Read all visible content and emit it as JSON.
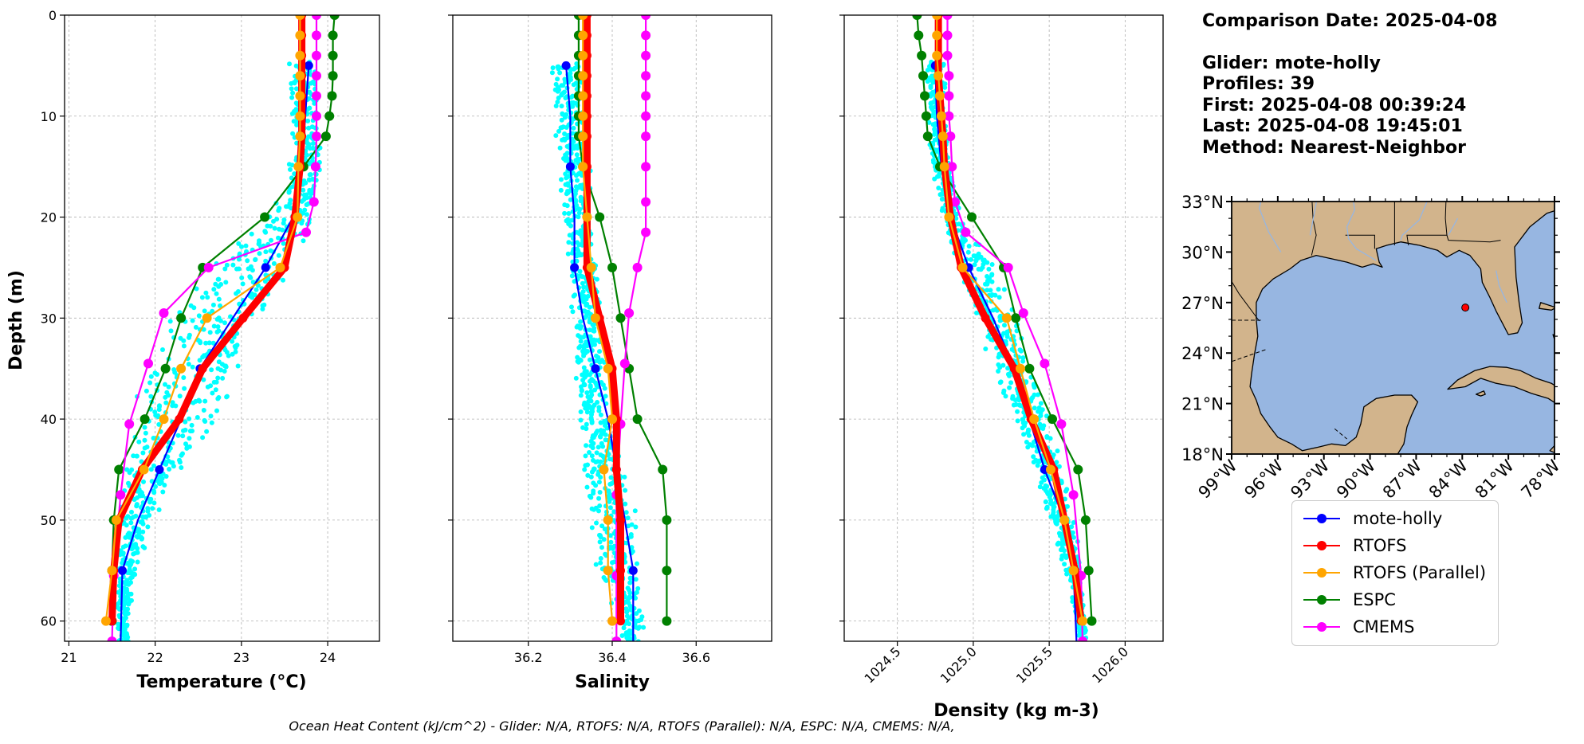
{
  "info": {
    "comparison_date": "Comparison Date: 2025-04-08",
    "glider": "Glider: mote-holly",
    "profiles": "Profiles: 39",
    "first": "First: 2025-04-08 00:39:24",
    "last": "Last: 2025-04-08 19:45:01",
    "method": "Method: Nearest-Neighbor"
  },
  "footer_text": "Ocean Heat Content (kJ/cm^2) - Glider: N/A,  RTOFS: N/A,  RTOFS (Parallel): N/A,  ESPC: N/A,  CMEMS: N/A,",
  "legend": [
    {
      "label": "mote-holly",
      "color": "#0000ff"
    },
    {
      "label": "RTOFS",
      "color": "#ff0000"
    },
    {
      "label": "RTOFS (Parallel)",
      "color": "#ffa500"
    },
    {
      "label": "ESPC",
      "color": "#008000"
    },
    {
      "label": "CMEMS",
      "color": "#ff00ff"
    }
  ],
  "chart_data": [
    {
      "type": "line",
      "xlabel": "Temperature (°C)",
      "ylabel": "Depth (m)",
      "xlim": [
        20.95,
        24.6
      ],
      "ylim": [
        62,
        0
      ],
      "yaxis_inverted": true,
      "xticks": [
        21,
        22,
        23,
        24
      ],
      "yticks": [
        0,
        10,
        20,
        30,
        40,
        50,
        60
      ],
      "grid": true,
      "glider_scatter_color": "#00ffff",
      "glider_scatter_envelope": {
        "depth": [
          5,
          10,
          15,
          20,
          25,
          30,
          35,
          40,
          45,
          50,
          55,
          60
        ],
        "min": [
          23.55,
          23.55,
          23.55,
          23.3,
          22.6,
          22.15,
          21.85,
          21.7,
          21.6,
          21.55,
          21.55,
          21.55
        ],
        "max": [
          23.9,
          23.9,
          23.95,
          23.9,
          23.6,
          23.3,
          23.05,
          22.8,
          22.3,
          22.0,
          21.8,
          21.7
        ]
      },
      "series": [
        {
          "name": "mote-holly",
          "color": "#0000ff",
          "marker_depths": [
            5,
            15,
            25,
            35,
            45,
            55
          ],
          "depth": [
            5,
            10,
            15,
            20,
            25,
            30,
            35,
            40,
            45,
            50,
            55,
            62
          ],
          "values": [
            23.78,
            23.74,
            23.7,
            23.6,
            23.28,
            22.9,
            22.52,
            22.3,
            22.05,
            21.8,
            21.62,
            21.6
          ]
        },
        {
          "name": "RTOFS",
          "color": "#ff0000",
          "marker_depths": [
            0,
            2,
            4,
            6,
            8,
            10,
            12,
            15,
            20,
            25,
            30,
            35,
            40,
            45,
            50,
            55,
            60
          ],
          "depth": [
            0,
            2,
            4,
            6,
            8,
            10,
            12,
            15,
            20,
            25,
            30,
            35,
            40,
            45,
            50,
            55,
            60
          ],
          "values": [
            23.7,
            23.7,
            23.7,
            23.7,
            23.7,
            23.7,
            23.7,
            23.68,
            23.62,
            23.5,
            23.02,
            22.55,
            22.28,
            21.85,
            21.58,
            21.52,
            21.5
          ]
        },
        {
          "name": "RTOFS (Parallel)",
          "color": "#ffa500",
          "marker_depths": [
            0,
            2,
            4,
            6,
            8,
            10,
            12,
            15,
            20,
            25,
            30,
            35,
            40,
            45,
            50,
            55,
            60
          ],
          "depth": [
            0,
            2,
            4,
            6,
            8,
            10,
            12,
            15,
            20,
            25,
            30,
            35,
            40,
            45,
            50,
            55,
            60
          ],
          "values": [
            23.68,
            23.68,
            23.68,
            23.68,
            23.68,
            23.68,
            23.68,
            23.66,
            23.65,
            23.45,
            22.6,
            22.3,
            22.1,
            21.87,
            21.55,
            21.5,
            21.43
          ]
        },
        {
          "name": "ESPC",
          "color": "#008000",
          "marker_depths": [
            0,
            2,
            4,
            6,
            8,
            10,
            12,
            15,
            20,
            25,
            30,
            35,
            40,
            45,
            50,
            55,
            60
          ],
          "depth": [
            0,
            2,
            4,
            6,
            8,
            10,
            12,
            15,
            20,
            25,
            30,
            35,
            40,
            45,
            50,
            55,
            60
          ],
          "values": [
            24.08,
            24.06,
            24.06,
            24.06,
            24.05,
            24.02,
            23.98,
            23.72,
            23.27,
            22.55,
            22.3,
            22.12,
            21.88,
            21.58,
            21.52,
            21.5,
            21.5
          ]
        },
        {
          "name": "CMEMS",
          "color": "#ff00ff",
          "marker_depths": [
            0,
            2,
            4,
            6,
            8,
            10,
            12,
            15,
            18.5,
            21.5,
            25,
            29.5,
            34.5,
            40.5,
            47.5,
            55.5,
            62
          ],
          "depth": [
            0,
            2,
            4,
            6,
            8,
            10,
            12,
            15,
            18.5,
            21.5,
            25,
            29.5,
            34.5,
            40.5,
            47.5,
            55.5,
            62
          ],
          "values": [
            23.87,
            23.87,
            23.87,
            23.87,
            23.87,
            23.87,
            23.87,
            23.86,
            23.84,
            23.75,
            22.62,
            22.1,
            21.92,
            21.7,
            21.6,
            21.52,
            21.5
          ]
        }
      ]
    },
    {
      "type": "line",
      "xlabel": "Salinity",
      "ylabel": "",
      "xlim": [
        36.02,
        36.78
      ],
      "ylim": [
        62,
        0
      ],
      "yaxis_inverted": true,
      "xticks": [
        36.2,
        36.4,
        36.6
      ],
      "yticks": [
        0,
        10,
        20,
        30,
        40,
        50,
        60
      ],
      "grid": true,
      "glider_scatter_color": "#00ffff",
      "glider_scatter_envelope": {
        "depth": [
          5,
          10,
          15,
          20,
          25,
          30,
          35,
          40,
          45,
          50,
          55,
          60
        ],
        "min": [
          36.25,
          36.26,
          36.27,
          36.28,
          36.29,
          36.3,
          36.31,
          36.32,
          36.33,
          36.34,
          36.36,
          36.42
        ],
        "max": [
          36.34,
          36.34,
          36.35,
          36.36,
          36.37,
          36.38,
          36.39,
          36.4,
          36.44,
          36.46,
          36.46,
          36.48
        ]
      },
      "series": [
        {
          "name": "mote-holly",
          "color": "#0000ff",
          "marker_depths": [
            5,
            15,
            25,
            35,
            45,
            55
          ],
          "depth": [
            5,
            10,
            15,
            20,
            25,
            30,
            35,
            40,
            45,
            50,
            55,
            62
          ],
          "values": [
            36.29,
            36.3,
            36.3,
            36.31,
            36.31,
            36.33,
            36.36,
            36.39,
            36.41,
            36.43,
            36.45,
            36.45
          ]
        },
        {
          "name": "RTOFS",
          "color": "#ff0000",
          "marker_depths": [
            0,
            2,
            4,
            6,
            8,
            10,
            12,
            15,
            20,
            25,
            30,
            35,
            40,
            45,
            50,
            55,
            60
          ],
          "depth": [
            0,
            2,
            4,
            6,
            8,
            10,
            12,
            15,
            20,
            25,
            30,
            35,
            40,
            45,
            50,
            55,
            60
          ],
          "values": [
            36.34,
            36.34,
            36.34,
            36.34,
            36.34,
            36.34,
            36.34,
            36.34,
            36.34,
            36.34,
            36.37,
            36.4,
            36.41,
            36.41,
            36.42,
            36.42,
            36.42
          ]
        },
        {
          "name": "RTOFS (Parallel)",
          "color": "#ffa500",
          "marker_depths": [
            0,
            2,
            4,
            6,
            8,
            10,
            12,
            15,
            20,
            25,
            30,
            35,
            40,
            45,
            50,
            55,
            60
          ],
          "depth": [
            0,
            2,
            4,
            6,
            8,
            10,
            12,
            15,
            20,
            25,
            30,
            35,
            40,
            45,
            50,
            55,
            60
          ],
          "values": [
            36.33,
            36.33,
            36.33,
            36.33,
            36.33,
            36.33,
            36.33,
            36.33,
            36.34,
            36.35,
            36.36,
            36.39,
            36.4,
            36.38,
            36.39,
            36.39,
            36.4
          ]
        },
        {
          "name": "ESPC",
          "color": "#008000",
          "marker_depths": [
            0,
            2,
            4,
            6,
            8,
            10,
            12,
            15,
            20,
            25,
            30,
            35,
            40,
            45,
            50,
            55,
            60
          ],
          "depth": [
            0,
            2,
            4,
            6,
            8,
            10,
            12,
            15,
            20,
            25,
            30,
            35,
            40,
            45,
            50,
            55,
            60
          ],
          "values": [
            36.32,
            36.32,
            36.32,
            36.32,
            36.32,
            36.32,
            36.32,
            36.33,
            36.37,
            36.4,
            36.42,
            36.44,
            36.46,
            36.52,
            36.53,
            36.53,
            36.53
          ]
        },
        {
          "name": "CMEMS",
          "color": "#ff00ff",
          "marker_depths": [
            0,
            2,
            4,
            6,
            8,
            10,
            12,
            15,
            18.5,
            21.5,
            25,
            29.5,
            34.5,
            40.5,
            47.5,
            55.5,
            62
          ],
          "depth": [
            0,
            2,
            4,
            6,
            8,
            10,
            12,
            15,
            18.5,
            21.5,
            25,
            29.5,
            34.5,
            40.5,
            47.5,
            55.5,
            62
          ],
          "values": [
            36.48,
            36.48,
            36.48,
            36.48,
            36.48,
            36.48,
            36.48,
            36.48,
            36.48,
            36.48,
            36.46,
            36.44,
            36.43,
            36.42,
            36.41,
            36.41,
            36.41
          ]
        }
      ]
    },
    {
      "type": "line",
      "xlabel": "Density (kg m-3)",
      "ylabel": "",
      "xlim": [
        1024.15,
        1026.25
      ],
      "ylim": [
        62,
        0
      ],
      "yaxis_inverted": true,
      "xticks": [
        1024.5,
        1025.0,
        1025.5,
        1026.0
      ],
      "xtick_labels": [
        "1024.5",
        "1025.0",
        "1025.5",
        "1026.0"
      ],
      "yticks": [
        0,
        10,
        20,
        30,
        40,
        50,
        60
      ],
      "grid": true,
      "glider_scatter_color": "#00ffff",
      "glider_scatter_envelope": {
        "depth": [
          5,
          10,
          15,
          20,
          25,
          30,
          35,
          40,
          45,
          50,
          55,
          60
        ],
        "min": [
          1024.68,
          1024.7,
          1024.72,
          1024.78,
          1024.88,
          1025.02,
          1025.12,
          1025.25,
          1025.38,
          1025.5,
          1025.6,
          1025.68
        ],
        "max": [
          1024.82,
          1024.83,
          1024.85,
          1024.95,
          1025.15,
          1025.3,
          1025.42,
          1025.52,
          1025.6,
          1025.66,
          1025.72,
          1025.75
        ]
      },
      "series": [
        {
          "name": "mote-holly",
          "color": "#0000ff",
          "marker_depths": [
            5,
            15,
            25,
            35,
            45,
            55
          ],
          "depth": [
            5,
            10,
            15,
            20,
            25,
            30,
            35,
            40,
            45,
            50,
            55,
            62
          ],
          "values": [
            1024.75,
            1024.76,
            1024.79,
            1024.85,
            1024.97,
            1025.13,
            1025.27,
            1025.37,
            1025.47,
            1025.6,
            1025.66,
            1025.68
          ]
        },
        {
          "name": "RTOFS",
          "color": "#ff0000",
          "marker_depths": [
            0,
            2,
            4,
            6,
            8,
            10,
            12,
            15,
            20,
            25,
            30,
            35,
            40,
            45,
            50,
            55,
            60
          ],
          "depth": [
            0,
            2,
            4,
            6,
            8,
            10,
            12,
            15,
            20,
            25,
            30,
            35,
            40,
            45,
            50,
            55,
            60
          ],
          "values": [
            1024.77,
            1024.77,
            1024.77,
            1024.77,
            1024.78,
            1024.79,
            1024.8,
            1024.81,
            1024.85,
            1024.92,
            1025.08,
            1025.27,
            1025.38,
            1025.53,
            1025.6,
            1025.67,
            1025.71
          ]
        },
        {
          "name": "RTOFS (Parallel)",
          "color": "#ffa500",
          "marker_depths": [
            0,
            2,
            4,
            6,
            8,
            10,
            12,
            15,
            20,
            25,
            30,
            35,
            40,
            45,
            50,
            55,
            60
          ],
          "depth": [
            0,
            2,
            4,
            6,
            8,
            10,
            12,
            15,
            20,
            25,
            30,
            35,
            40,
            45,
            50,
            55,
            60
          ],
          "values": [
            1024.76,
            1024.76,
            1024.76,
            1024.77,
            1024.78,
            1024.79,
            1024.8,
            1024.81,
            1024.84,
            1024.93,
            1025.22,
            1025.31,
            1025.4,
            1025.51,
            1025.6,
            1025.66,
            1025.72
          ]
        },
        {
          "name": "ESPC",
          "color": "#008000",
          "marker_depths": [
            0,
            2,
            4,
            6,
            8,
            10,
            12,
            15,
            20,
            25,
            30,
            35,
            40,
            45,
            50,
            55,
            60
          ],
          "depth": [
            0,
            2,
            4,
            6,
            8,
            10,
            12,
            15,
            20,
            25,
            30,
            35,
            40,
            45,
            50,
            55,
            60
          ],
          "values": [
            1024.63,
            1024.64,
            1024.66,
            1024.67,
            1024.68,
            1024.69,
            1024.7,
            1024.78,
            1024.99,
            1025.2,
            1025.28,
            1025.37,
            1025.52,
            1025.69,
            1025.74,
            1025.76,
            1025.78
          ]
        },
        {
          "name": "CMEMS",
          "color": "#ff00ff",
          "marker_depths": [
            0,
            2,
            4,
            6,
            8,
            10,
            12,
            15,
            18.5,
            21.5,
            25,
            29.5,
            34.5,
            40.5,
            47.5,
            55.5,
            62
          ],
          "depth": [
            0,
            2,
            4,
            6,
            8,
            10,
            12,
            15,
            18.5,
            21.5,
            25,
            29.5,
            34.5,
            40.5,
            47.5,
            55.5,
            62
          ],
          "values": [
            1024.83,
            1024.83,
            1024.83,
            1024.84,
            1024.84,
            1024.84,
            1024.85,
            1024.86,
            1024.88,
            1024.95,
            1025.23,
            1025.33,
            1025.47,
            1025.58,
            1025.66,
            1025.71,
            1025.72
          ]
        }
      ]
    }
  ],
  "map": {
    "lat_ticks": [
      "33°N",
      "30°N",
      "27°N",
      "24°N",
      "21°N",
      "18°N"
    ],
    "lon_ticks": [
      "99°W",
      "96°W",
      "93°W",
      "90°W",
      "87°W",
      "84°W",
      "81°W",
      "78°W"
    ],
    "lon_range": [
      -99,
      -78
    ],
    "lat_range": [
      18,
      33
    ],
    "glider_location": {
      "lon": -83.8,
      "lat": 26.7
    },
    "ocean_color": "#97b6e1",
    "land_color": "#d2b48c"
  }
}
